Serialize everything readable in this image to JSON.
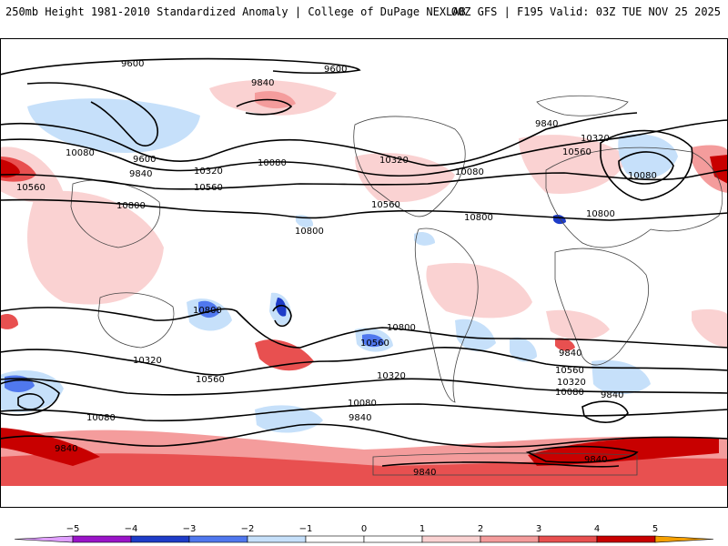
{
  "header": {
    "left": "250mb Height 1981-2010 Standardized Anomaly | College of DuPage NEXLAB",
    "right": "00Z GFS | F195 Valid: 03Z TUE NOV 25 2025"
  },
  "colors": {
    "neg5": "#e0a0ff",
    "neg4": "#9a14c8",
    "neg3": "#1e3cc8",
    "neg2": "#5078ee",
    "neg1": "#c6e0fa",
    "zero": "#ffffff",
    "pos1": "#fad2d2",
    "pos2": "#f49c9c",
    "pos3": "#e85050",
    "pos4": "#c80000",
    "pos5": "#f5a000",
    "land": "#444444",
    "contour": "#000000"
  },
  "colorbar": {
    "ticks": [
      "−5",
      "−4",
      "−3",
      "−2",
      "−1",
      "0",
      "1",
      "2",
      "3",
      "4",
      "5"
    ]
  },
  "contour_labels": [
    {
      "id": "c1",
      "text": "9600"
    },
    {
      "id": "c2",
      "text": "9600"
    },
    {
      "id": "c3",
      "text": "9840"
    },
    {
      "id": "c4",
      "text": "9840"
    },
    {
      "id": "c5",
      "text": "10080"
    },
    {
      "id": "c6",
      "text": "9600"
    },
    {
      "id": "c7",
      "text": "9840"
    },
    {
      "id": "c8",
      "text": "10320"
    },
    {
      "id": "c9",
      "text": "10080"
    },
    {
      "id": "c10",
      "text": "10560"
    },
    {
      "id": "c11",
      "text": "10560"
    },
    {
      "id": "c12",
      "text": "10800"
    },
    {
      "id": "c13",
      "text": "10320"
    },
    {
      "id": "c14",
      "text": "10080"
    },
    {
      "id": "c15",
      "text": "10560"
    },
    {
      "id": "c16",
      "text": "10800"
    },
    {
      "id": "c17",
      "text": "10800"
    },
    {
      "id": "c18",
      "text": "10320"
    },
    {
      "id": "c19",
      "text": "10560"
    },
    {
      "id": "c20",
      "text": "10080"
    },
    {
      "id": "c21",
      "text": "10800"
    },
    {
      "id": "c22",
      "text": "10800"
    },
    {
      "id": "c23",
      "text": "10560"
    },
    {
      "id": "c24",
      "text": "10800"
    },
    {
      "id": "c25",
      "text": "10320"
    },
    {
      "id": "c26",
      "text": "10560"
    },
    {
      "id": "c27",
      "text": "10320"
    },
    {
      "id": "c28",
      "text": "10080"
    },
    {
      "id": "c29",
      "text": "10080"
    },
    {
      "id": "c30",
      "text": "9840"
    },
    {
      "id": "c31",
      "text": "9840"
    },
    {
      "id": "c32",
      "text": "10560"
    },
    {
      "id": "c33",
      "text": "10320"
    },
    {
      "id": "c34",
      "text": "10080"
    },
    {
      "id": "c35",
      "text": "9840"
    },
    {
      "id": "c36",
      "text": "9840"
    },
    {
      "id": "c37",
      "text": "9840"
    },
    {
      "id": "c38",
      "text": "9840"
    }
  ]
}
